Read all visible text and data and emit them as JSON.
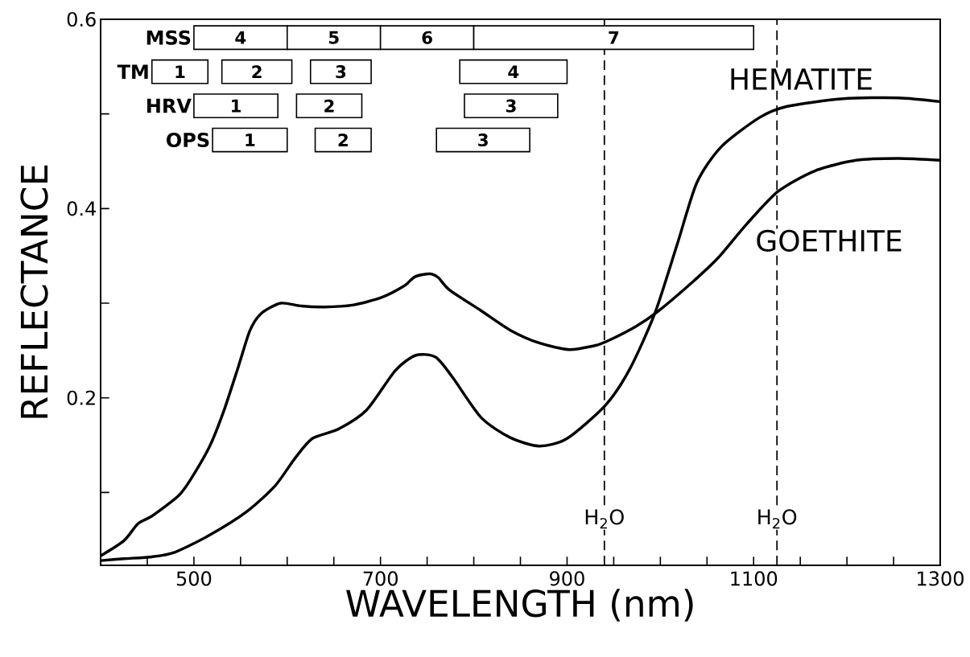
{
  "chart_data": {
    "type": "line",
    "xlabel": "WAVELENGTH (nm)",
    "ylabel": "REFLECTANCE",
    "xlim": [
      400,
      1300
    ],
    "ylim": [
      0.023,
      0.6
    ],
    "xticks": [
      {
        "value": 450,
        "label": null
      },
      500,
      {
        "value": 550,
        "label": null
      },
      {
        "value": 600,
        "label": null
      },
      {
        "value": 650,
        "label": null
      },
      700,
      {
        "value": 750,
        "label": null
      },
      {
        "value": 800,
        "label": null
      },
      {
        "value": 850,
        "label": null
      },
      900,
      {
        "value": 950,
        "label": null
      },
      {
        "value": 1000,
        "label": null
      },
      {
        "value": 1050,
        "label": null
      },
      1100,
      {
        "value": 1150,
        "label": null
      },
      {
        "value": 1200,
        "label": null
      },
      {
        "value": 1250,
        "label": null
      },
      1300
    ],
    "yticks": [
      {
        "value": 0.1,
        "label": null
      },
      0.2,
      {
        "value": 0.3,
        "label": null
      },
      0.4,
      {
        "value": 0.5,
        "label": null
      },
      0.6
    ],
    "series": [
      {
        "name": "HEMATITE",
        "color": "#000000",
        "x": [
          400,
          425,
          455,
          480,
          517,
          557,
          587,
          609,
          627,
          655,
          685,
          716,
          738,
          759,
          777,
          808,
          839,
          870,
          900,
          941,
          967,
          994,
          1018,
          1039,
          1065,
          1106,
          1136,
          1196,
          1255,
          1300
        ],
        "values": [
          0.028,
          0.03,
          0.032,
          0.037,
          0.055,
          0.08,
          0.107,
          0.137,
          0.157,
          0.167,
          0.187,
          0.229,
          0.245,
          0.243,
          0.222,
          0.179,
          0.158,
          0.149,
          0.157,
          0.192,
          0.23,
          0.289,
          0.362,
          0.427,
          0.465,
          0.496,
          0.508,
          0.516,
          0.517,
          0.513
        ]
      },
      {
        "name": "GOETHITE",
        "color": "#000000",
        "x": [
          400,
          425,
          440,
          455,
          483,
          496,
          517,
          532,
          548,
          560,
          572,
          593,
          615,
          640,
          670,
          701,
          725,
          737,
          753,
          762,
          774,
          808,
          840,
          870,
          902,
          929,
          941,
          973,
          997,
          1033,
          1062,
          1092,
          1126,
          1166,
          1210,
          1255,
          1300
        ],
        "values": [
          0.033,
          0.049,
          0.067,
          0.075,
          0.096,
          0.113,
          0.149,
          0.186,
          0.234,
          0.271,
          0.289,
          0.3,
          0.297,
          0.296,
          0.298,
          0.306,
          0.318,
          0.328,
          0.331,
          0.327,
          0.314,
          0.292,
          0.271,
          0.258,
          0.251,
          0.255,
          0.259,
          0.275,
          0.291,
          0.321,
          0.348,
          0.383,
          0.418,
          0.44,
          0.451,
          0.453,
          0.451
        ]
      }
    ],
    "ref_lines": [
      {
        "axis": "x",
        "value": 940,
        "label": "H$_{2}$O",
        "line_style": "dashed"
      },
      {
        "axis": "x",
        "value": 1125,
        "label": "H$_{2}$O",
        "line_style": "dashed"
      }
    ],
    "bands": [
      {
        "axis": "x",
        "from": 500,
        "to": 600,
        "label": "4"
      },
      {
        "axis": "x",
        "from": 600,
        "to": 700,
        "label": "5"
      },
      {
        "axis": "x",
        "from": 700,
        "to": 800,
        "label": "6"
      },
      {
        "axis": "x",
        "from": 800,
        "to": 1100,
        "label": "7"
      },
      {
        "axis": "x",
        "from": 455,
        "to": 515,
        "label": "1"
      },
      {
        "axis": "x",
        "from": 530,
        "to": 605,
        "label": "2"
      },
      {
        "axis": "x",
        "from": 625,
        "to": 690,
        "label": "3"
      },
      {
        "axis": "x",
        "from": 785,
        "to": 900,
        "label": "4"
      },
      {
        "axis": "x",
        "from": 500,
        "to": 590,
        "label": "1"
      },
      {
        "axis": "x",
        "from": 610,
        "to": 680,
        "label": "2"
      },
      {
        "axis": "x",
        "from": 790,
        "to": 890,
        "label": "3"
      },
      {
        "axis": "x",
        "from": 520,
        "to": 600,
        "label": "1"
      },
      {
        "axis": "x",
        "from": 630,
        "to": 690,
        "label": "2"
      },
      {
        "axis": "x",
        "from": 760,
        "to": 860,
        "label": "3"
      }
    ],
    "annotations": [
      "MSS",
      "TM",
      "HRV",
      "OPS"
    ]
  }
}
